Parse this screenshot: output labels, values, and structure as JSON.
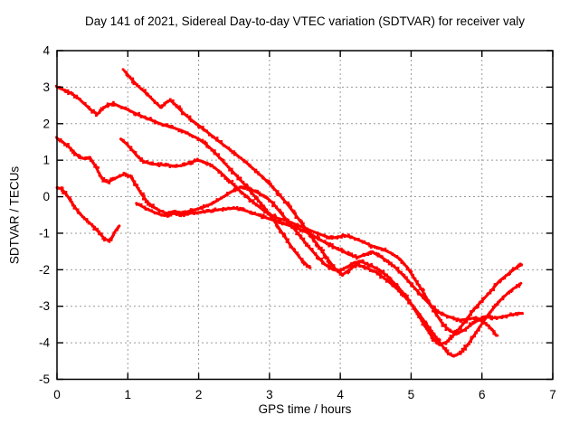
{
  "title": "Day 141 of 2021, Sidereal Day-to-day VTEC variation (SDTVAR) for receiver valy",
  "colors": {
    "marker": "#ff0000",
    "grid": "#9a9a9a",
    "axis": "#000000",
    "background": "#ffffff",
    "text": "#000000"
  },
  "chart_data": {
    "type": "scatter",
    "title": "Day 141 of 2021, Sidereal Day-to-day VTEC variation (SDTVAR) for receiver valy",
    "xlabel": "GPS time / hours",
    "ylabel": "SDTVAR / TECUs",
    "xlim": [
      0,
      7
    ],
    "ylim": [
      -5,
      4
    ],
    "xticks": [
      0,
      1,
      2,
      3,
      4,
      5,
      6,
      7
    ],
    "yticks": [
      4,
      3,
      2,
      1,
      0,
      -1,
      -2,
      -3,
      -4,
      -5
    ],
    "grid": true,
    "legend": false,
    "marker": "small-plus",
    "series": [
      {
        "name": "trace-1",
        "points": [
          [
            0,
            3.0
          ],
          [
            0.1,
            2.92
          ],
          [
            0.2,
            2.83
          ],
          [
            0.3,
            2.7
          ],
          [
            0.4,
            2.52
          ],
          [
            0.5,
            2.34
          ],
          [
            0.57,
            2.26
          ],
          [
            0.64,
            2.4
          ],
          [
            0.72,
            2.52
          ],
          [
            0.8,
            2.55
          ],
          [
            0.9,
            2.46
          ],
          [
            1.0,
            2.38
          ],
          [
            1.12,
            2.27
          ],
          [
            1.25,
            2.16
          ],
          [
            1.38,
            2.06
          ],
          [
            1.5,
            1.97
          ],
          [
            1.62,
            1.9
          ],
          [
            1.75,
            1.82
          ],
          [
            1.88,
            1.7
          ],
          [
            2.0,
            1.58
          ],
          [
            2.1,
            1.44
          ],
          [
            2.2,
            1.27
          ],
          [
            2.32,
            1.02
          ],
          [
            2.45,
            0.75
          ],
          [
            2.58,
            0.48
          ],
          [
            2.7,
            0.22
          ],
          [
            2.82,
            -0.05
          ],
          [
            2.95,
            -0.35
          ],
          [
            3.08,
            -0.7
          ],
          [
            3.2,
            -1.05
          ],
          [
            3.32,
            -1.4
          ],
          [
            3.45,
            -1.72
          ],
          [
            3.57,
            -1.95
          ]
        ]
      },
      {
        "name": "trace-2",
        "points": [
          [
            0.95,
            3.45
          ],
          [
            1.05,
            3.22
          ],
          [
            1.15,
            3.02
          ],
          [
            1.27,
            2.82
          ],
          [
            1.38,
            2.6
          ],
          [
            1.47,
            2.44
          ],
          [
            1.54,
            2.58
          ],
          [
            1.6,
            2.64
          ],
          [
            1.68,
            2.5
          ],
          [
            1.78,
            2.3
          ],
          [
            1.9,
            2.1
          ],
          [
            2.05,
            1.88
          ],
          [
            2.2,
            1.65
          ],
          [
            2.35,
            1.42
          ],
          [
            2.5,
            1.2
          ],
          [
            2.65,
            0.97
          ],
          [
            2.8,
            0.72
          ],
          [
            2.95,
            0.45
          ],
          [
            3.1,
            0.15
          ],
          [
            3.25,
            -0.2
          ],
          [
            3.4,
            -0.58
          ],
          [
            3.55,
            -0.98
          ],
          [
            3.7,
            -1.38
          ],
          [
            3.82,
            -1.7
          ],
          [
            3.93,
            -1.98
          ],
          [
            4.03,
            -2.14
          ],
          [
            4.13,
            -2.0
          ],
          [
            4.23,
            -1.86
          ],
          [
            4.35,
            -1.93
          ],
          [
            4.5,
            -2.06
          ],
          [
            4.65,
            -2.27
          ],
          [
            4.8,
            -2.52
          ],
          [
            4.95,
            -2.82
          ],
          [
            5.1,
            -3.18
          ],
          [
            5.25,
            -3.58
          ],
          [
            5.4,
            -3.98
          ],
          [
            5.52,
            -4.28
          ],
          [
            5.6,
            -4.37
          ],
          [
            5.7,
            -4.28
          ],
          [
            5.82,
            -4.0
          ],
          [
            5.95,
            -3.62
          ],
          [
            6.1,
            -3.2
          ],
          [
            6.25,
            -2.85
          ],
          [
            6.4,
            -2.58
          ],
          [
            6.55,
            -2.37
          ]
        ]
      },
      {
        "name": "trace-3",
        "points": [
          [
            0,
            1.6
          ],
          [
            0.08,
            1.5
          ],
          [
            0.16,
            1.38
          ],
          [
            0.24,
            1.22
          ],
          [
            0.32,
            1.07
          ],
          [
            0.4,
            1.04
          ],
          [
            0.46,
            1.08
          ],
          [
            0.54,
            0.85
          ],
          [
            0.6,
            0.62
          ],
          [
            0.66,
            0.44
          ],
          [
            0.72,
            0.4
          ],
          [
            0.8,
            0.48
          ],
          [
            0.88,
            0.56
          ],
          [
            0.96,
            0.62
          ],
          [
            1.04,
            0.55
          ],
          [
            1.12,
            0.3
          ],
          [
            1.2,
            0.05
          ],
          [
            1.28,
            -0.15
          ],
          [
            1.36,
            -0.28
          ],
          [
            1.45,
            -0.38
          ],
          [
            1.55,
            -0.46
          ],
          [
            1.65,
            -0.4
          ],
          [
            1.78,
            -0.44
          ],
          [
            1.9,
            -0.38
          ],
          [
            2.05,
            -0.3
          ],
          [
            2.2,
            -0.18
          ],
          [
            2.35,
            0.0
          ],
          [
            2.5,
            0.18
          ],
          [
            2.6,
            0.27
          ],
          [
            2.7,
            0.24
          ],
          [
            2.82,
            0.12
          ],
          [
            2.95,
            0.0
          ],
          [
            3.05,
            -0.18
          ],
          [
            3.15,
            -0.42
          ],
          [
            3.27,
            -0.7
          ],
          [
            3.4,
            -1.0
          ],
          [
            3.52,
            -1.3
          ],
          [
            3.65,
            -1.58
          ],
          [
            3.78,
            -1.85
          ],
          [
            3.9,
            -2.0
          ],
          [
            4.0,
            -2.02
          ],
          [
            4.1,
            -1.92
          ],
          [
            4.2,
            -1.8
          ],
          [
            4.3,
            -1.78
          ],
          [
            4.42,
            -1.88
          ],
          [
            4.55,
            -2.0
          ],
          [
            4.68,
            -2.2
          ],
          [
            4.8,
            -2.45
          ],
          [
            4.92,
            -2.7
          ],
          [
            5.02,
            -3.0
          ],
          [
            5.12,
            -3.3
          ],
          [
            5.22,
            -3.6
          ],
          [
            5.32,
            -3.9
          ],
          [
            5.4,
            -4.05
          ],
          [
            5.5,
            -3.98
          ],
          [
            5.62,
            -3.75
          ],
          [
            5.75,
            -3.45
          ],
          [
            5.88,
            -3.1
          ],
          [
            6.0,
            -2.85
          ],
          [
            6.12,
            -2.6
          ],
          [
            6.25,
            -2.3
          ],
          [
            6.38,
            -2.1
          ],
          [
            6.48,
            -1.95
          ],
          [
            6.56,
            -1.86
          ]
        ]
      },
      {
        "name": "trace-4",
        "points": [
          [
            0,
            0.25
          ],
          [
            0.06,
            0.22
          ],
          [
            0.12,
            0.1
          ],
          [
            0.18,
            -0.08
          ],
          [
            0.25,
            -0.28
          ],
          [
            0.33,
            -0.48
          ],
          [
            0.42,
            -0.65
          ],
          [
            0.52,
            -0.82
          ],
          [
            0.6,
            -1.0
          ],
          [
            0.67,
            -1.15
          ],
          [
            0.73,
            -1.2
          ],
          [
            0.78,
            -1.1
          ],
          [
            0.83,
            -0.92
          ],
          [
            0.88,
            -0.8
          ]
        ]
      },
      {
        "name": "trace-5",
        "points": [
          [
            0.9,
            1.58
          ],
          [
            0.98,
            1.45
          ],
          [
            1.06,
            1.28
          ],
          [
            1.14,
            1.1
          ],
          [
            1.22,
            0.97
          ],
          [
            1.32,
            0.9
          ],
          [
            1.45,
            0.88
          ],
          [
            1.58,
            0.86
          ],
          [
            1.68,
            0.83
          ],
          [
            1.78,
            0.86
          ],
          [
            1.88,
            0.93
          ],
          [
            1.98,
            1.0
          ],
          [
            2.08,
            0.95
          ],
          [
            2.18,
            0.86
          ],
          [
            2.3,
            0.68
          ],
          [
            2.42,
            0.46
          ],
          [
            2.55,
            0.22
          ],
          [
            2.68,
            0.0
          ],
          [
            2.8,
            -0.2
          ],
          [
            2.95,
            -0.42
          ],
          [
            3.1,
            -0.58
          ],
          [
            3.25,
            -0.66
          ],
          [
            3.4,
            -0.78
          ],
          [
            3.55,
            -0.9
          ],
          [
            3.7,
            -1.02
          ],
          [
            3.85,
            -1.12
          ],
          [
            3.95,
            -1.12
          ],
          [
            4.05,
            -1.06
          ],
          [
            4.15,
            -1.1
          ],
          [
            4.3,
            -1.22
          ],
          [
            4.45,
            -1.35
          ],
          [
            4.58,
            -1.42
          ],
          [
            4.72,
            -1.55
          ],
          [
            4.85,
            -1.72
          ],
          [
            4.95,
            -1.95
          ],
          [
            5.05,
            -2.25
          ],
          [
            5.15,
            -2.55
          ],
          [
            5.25,
            -2.88
          ],
          [
            5.35,
            -3.2
          ],
          [
            5.45,
            -3.5
          ],
          [
            5.55,
            -3.68
          ],
          [
            5.65,
            -3.75
          ],
          [
            5.75,
            -3.65
          ],
          [
            5.85,
            -3.5
          ],
          [
            5.95,
            -3.38
          ],
          [
            6.05,
            -3.28
          ],
          [
            6.15,
            -3.32
          ],
          [
            6.28,
            -3.3
          ],
          [
            6.4,
            -3.24
          ],
          [
            6.57,
            -3.19
          ]
        ]
      },
      {
        "name": "trace-6",
        "points": [
          [
            1.12,
            -0.18
          ],
          [
            1.25,
            -0.32
          ],
          [
            1.4,
            -0.45
          ],
          [
            1.52,
            -0.52
          ],
          [
            1.65,
            -0.46
          ],
          [
            1.78,
            -0.5
          ],
          [
            1.9,
            -0.45
          ],
          [
            2.05,
            -0.42
          ],
          [
            2.2,
            -0.38
          ],
          [
            2.35,
            -0.34
          ],
          [
            2.5,
            -0.31
          ],
          [
            2.62,
            -0.36
          ],
          [
            2.75,
            -0.44
          ],
          [
            2.9,
            -0.54
          ],
          [
            3.05,
            -0.64
          ],
          [
            3.2,
            -0.74
          ],
          [
            3.38,
            -0.85
          ],
          [
            3.55,
            -1.0
          ],
          [
            3.7,
            -1.16
          ],
          [
            3.85,
            -1.32
          ],
          [
            4.0,
            -1.46
          ],
          [
            4.12,
            -1.58
          ],
          [
            4.25,
            -1.66
          ],
          [
            4.35,
            -1.58
          ],
          [
            4.45,
            -1.52
          ],
          [
            4.55,
            -1.62
          ],
          [
            4.68,
            -1.78
          ],
          [
            4.8,
            -1.98
          ],
          [
            4.92,
            -2.22
          ],
          [
            5.05,
            -2.5
          ],
          [
            5.18,
            -2.78
          ],
          [
            5.3,
            -3.02
          ],
          [
            5.42,
            -3.2
          ],
          [
            5.55,
            -3.3
          ],
          [
            5.68,
            -3.38
          ],
          [
            5.8,
            -3.35
          ],
          [
            5.9,
            -3.32
          ],
          [
            6.0,
            -3.4
          ],
          [
            6.08,
            -3.52
          ],
          [
            6.15,
            -3.65
          ],
          [
            6.2,
            -3.8
          ]
        ]
      }
    ]
  }
}
